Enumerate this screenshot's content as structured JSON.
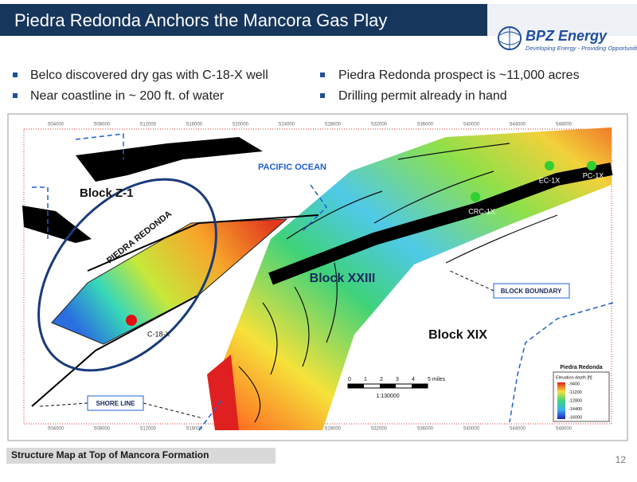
{
  "header": {
    "title": "Piedra Redonda Anchors the Mancora Gas Play"
  },
  "logo": {
    "name": "BPZ Energy",
    "tagline": "Developing Energy - Providing Opportunities"
  },
  "bullets": {
    "left": [
      "Belco discovered dry gas with C-18-X well",
      "Near coastline in ~ 200 ft. of water"
    ],
    "right": [
      "Piedra Redonda prospect is ~11,000 acres",
      "Drilling permit already in hand"
    ]
  },
  "map": {
    "axis_labels": [
      "504000",
      "508000",
      "512000",
      "516000",
      "520000",
      "524000",
      "528000",
      "532000",
      "536000",
      "540000",
      "544000",
      "548000"
    ],
    "ocean": "PACIFIC OCEAN",
    "block_z1": "Block Z-1",
    "prospect": "PIEDRA REDONDA",
    "well_c18x": "C-18-X",
    "block_xxiii": "Block XXIII",
    "block_xix": "Block XIX",
    "well_crc": "CRC-1X",
    "well_ec": "EC-1X",
    "well_pc": "PC-1X",
    "boundary": "BLOCK BOUNDARY",
    "shore": "SHORE LINE",
    "scale": {
      "labels": [
        "0",
        "1",
        "2",
        "3",
        "4",
        "5 miles"
      ],
      "ratio": "1:130000"
    },
    "legend": {
      "title": "Piedra Redonda",
      "subtitle": "Elevation depth [ft]",
      "labels": [
        "-9400",
        "-11200",
        "-12800",
        "-14400",
        "-16000"
      ]
    }
  },
  "footer": {
    "caption": "Structure Map at Top of Mancora Formation",
    "page": "12"
  }
}
